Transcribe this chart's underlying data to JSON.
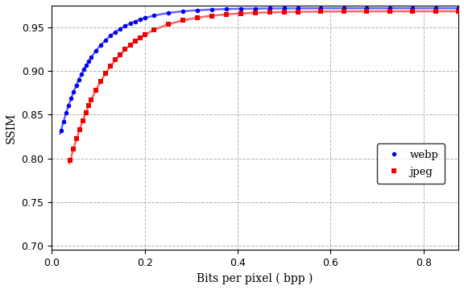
{
  "title": "",
  "xlabel": "Bits per pixel ( bpp )",
  "ylabel": "SSIM",
  "xlim": [
    0.0,
    0.875
  ],
  "ylim": [
    0.695,
    0.975
  ],
  "xticks": [
    0.0,
    0.2,
    0.4,
    0.6,
    0.8
  ],
  "yticks": [
    0.7,
    0.75,
    0.8,
    0.85,
    0.9,
    0.95
  ],
  "grid": true,
  "legend_loc": "lower right",
  "webp_color": "#0000EE",
  "jpeg_color": "#EE0000",
  "line_webp_color": "#6666FF",
  "line_jpeg_color": "#FF6666",
  "background_color": "#FFFFFF",
  "webp_label": "webp",
  "jpeg_label": "jpeg"
}
